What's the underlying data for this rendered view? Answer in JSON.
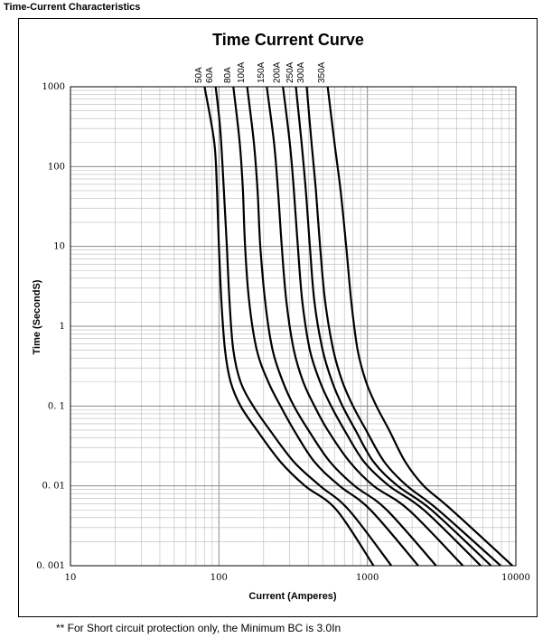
{
  "page": {
    "heading": "Time-Current Characteristics",
    "footnote": "** For Short circuit protection only, the Minimum BC is 3.0In"
  },
  "chart_data": {
    "type": "line",
    "title": "Time Current Curve",
    "xlabel": "Current  (Amperes)",
    "ylabel": "Time (SecondS)",
    "x_scale": "log",
    "y_scale": "log",
    "xlim": [
      10,
      10000
    ],
    "ylim": [
      0.001,
      1000
    ],
    "grid": true,
    "x_ticks": [
      {
        "value": 10,
        "label": "10"
      },
      {
        "value": 100,
        "label": "100"
      },
      {
        "value": 1000,
        "label": "1000"
      },
      {
        "value": 10000,
        "label": "10000"
      }
    ],
    "y_ticks": [
      {
        "value": 1000,
        "label": "1000"
      },
      {
        "value": 100,
        "label": "100"
      },
      {
        "value": 10,
        "label": "10"
      },
      {
        "value": 1,
        "label": "1"
      },
      {
        "value": 0.1,
        "label": "0. 1"
      },
      {
        "value": 0.01,
        "label": "0. 01"
      },
      {
        "value": 0.001,
        "label": "0. 001"
      }
    ],
    "series": [
      {
        "name": "50A",
        "points": [
          [
            80,
            1000
          ],
          [
            93,
            200
          ],
          [
            97,
            50
          ],
          [
            100,
            10
          ],
          [
            104,
            2
          ],
          [
            110,
            0.5
          ],
          [
            120,
            0.2
          ],
          [
            140,
            0.1
          ],
          [
            180,
            0.05
          ],
          [
            260,
            0.02
          ],
          [
            380,
            0.01
          ],
          [
            620,
            0.005
          ],
          [
            1100,
            0.001
          ]
        ]
      },
      {
        "name": "60A",
        "points": [
          [
            95,
            1000
          ],
          [
            102,
            300
          ],
          [
            108,
            50
          ],
          [
            113,
            10
          ],
          [
            118,
            2
          ],
          [
            125,
            0.5
          ],
          [
            140,
            0.2
          ],
          [
            170,
            0.1
          ],
          [
            220,
            0.05
          ],
          [
            320,
            0.02
          ],
          [
            480,
            0.01
          ],
          [
            750,
            0.005
          ],
          [
            1450,
            0.001
          ]
        ]
      },
      {
        "name": "80A",
        "points": [
          [
            125,
            1000
          ],
          [
            138,
            200
          ],
          [
            145,
            50
          ],
          [
            150,
            10
          ],
          [
            160,
            2
          ],
          [
            180,
            0.5
          ],
          [
            215,
            0.2
          ],
          [
            260,
            0.1
          ],
          [
            320,
            0.05
          ],
          [
            440,
            0.02
          ],
          [
            650,
            0.01
          ],
          [
            1050,
            0.005
          ],
          [
            2200,
            0.001
          ]
        ]
      },
      {
        "name": "100A",
        "points": [
          [
            155,
            1000
          ],
          [
            172,
            200
          ],
          [
            182,
            50
          ],
          [
            190,
            10
          ],
          [
            205,
            2
          ],
          [
            230,
            0.5
          ],
          [
            270,
            0.2
          ],
          [
            320,
            0.1
          ],
          [
            400,
            0.05
          ],
          [
            560,
            0.02
          ],
          [
            820,
            0.01
          ],
          [
            1350,
            0.005
          ],
          [
            2900,
            0.001
          ]
        ]
      },
      {
        "name": "150A",
        "points": [
          [
            210,
            1000
          ],
          [
            235,
            200
          ],
          [
            250,
            50
          ],
          [
            265,
            10
          ],
          [
            285,
            2
          ],
          [
            320,
            0.5
          ],
          [
            370,
            0.2
          ],
          [
            440,
            0.1
          ],
          [
            540,
            0.05
          ],
          [
            760,
            0.02
          ],
          [
            1100,
            0.01
          ],
          [
            1900,
            0.005
          ],
          [
            4400,
            0.001
          ]
        ]
      },
      {
        "name": "200A",
        "points": [
          [
            270,
            1000
          ],
          [
            300,
            200
          ],
          [
            320,
            50
          ],
          [
            340,
            10
          ],
          [
            365,
            2
          ],
          [
            410,
            0.5
          ],
          [
            480,
            0.2
          ],
          [
            570,
            0.1
          ],
          [
            700,
            0.05
          ],
          [
            950,
            0.02
          ],
          [
            1400,
            0.01
          ],
          [
            2400,
            0.005
          ],
          [
            5800,
            0.001
          ]
        ]
      },
      {
        "name": "250A",
        "points": [
          [
            330,
            1000
          ],
          [
            360,
            200
          ],
          [
            385,
            50
          ],
          [
            410,
            10
          ],
          [
            440,
            2
          ],
          [
            500,
            0.5
          ],
          [
            580,
            0.2
          ],
          [
            680,
            0.1
          ],
          [
            830,
            0.05
          ],
          [
            1100,
            0.02
          ],
          [
            1600,
            0.01
          ],
          [
            2700,
            0.005
          ],
          [
            6800,
            0.001
          ]
        ]
      },
      {
        "name": "300A",
        "points": [
          [
            390,
            1000
          ],
          [
            420,
            200
          ],
          [
            450,
            50
          ],
          [
            480,
            10
          ],
          [
            520,
            2
          ],
          [
            590,
            0.5
          ],
          [
            680,
            0.2
          ],
          [
            800,
            0.1
          ],
          [
            980,
            0.05
          ],
          [
            1300,
            0.02
          ],
          [
            1850,
            0.01
          ],
          [
            3000,
            0.005
          ],
          [
            7900,
            0.001
          ]
        ]
      },
      {
        "name": "350A",
        "points": [
          [
            540,
            1000
          ],
          [
            600,
            200
          ],
          [
            660,
            50
          ],
          [
            720,
            10
          ],
          [
            780,
            2
          ],
          [
            860,
            0.5
          ],
          [
            980,
            0.2
          ],
          [
            1150,
            0.1
          ],
          [
            1400,
            0.05
          ],
          [
            1800,
            0.02
          ],
          [
            2400,
            0.01
          ],
          [
            3700,
            0.005
          ],
          [
            9500,
            0.001
          ]
        ]
      }
    ]
  }
}
